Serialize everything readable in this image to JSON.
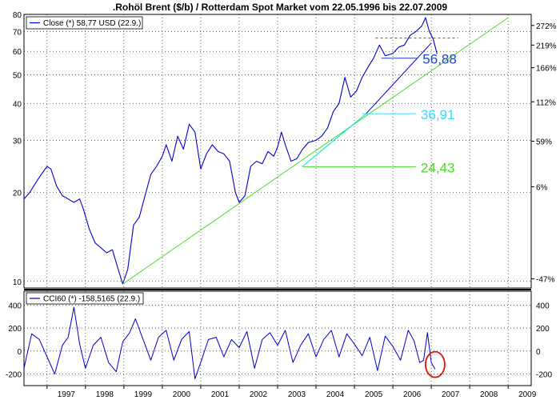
{
  "chart_data": [
    {
      "type": "line",
      "title": ".Rohöl Brent ($/b) / Rotterdam Spot Market vom 22.05.1996 bis 22.07.2009",
      "scale": "log",
      "ylim": [
        9.5,
        80
      ],
      "xlim": [
        1996.4,
        2009.6
      ],
      "legend": {
        "label": "Close (*) 58,77 USD (22.9.)",
        "placement": "top-left",
        "color": "#0000cc"
      },
      "left_ticks": [
        10,
        20,
        30,
        40,
        50,
        60,
        70,
        80
      ],
      "right_ticks": [
        {
          "label": "272%",
          "value": 73.4
        },
        {
          "label": "219%",
          "value": 63.0
        },
        {
          "label": "166%",
          "value": 52.8
        },
        {
          "label": "112%",
          "value": 40.5
        },
        {
          "label": "59%",
          "value": 29.8
        },
        {
          "label": "6%",
          "value": 20.9
        },
        {
          "label": "-47%",
          "value": 10.2
        }
      ],
      "x_tick_labels": [
        "1997",
        "1998",
        "1999",
        "2000",
        "2001",
        "2002",
        "2003",
        "2004",
        "2005",
        "2006",
        "2007",
        "2008",
        "2009"
      ],
      "series": [
        {
          "color": "#0000cc",
          "x": [
            1996.4,
            1996.55,
            1996.7,
            1996.85,
            1997.0,
            1997.1,
            1997.25,
            1997.4,
            1997.55,
            1997.7,
            1997.85,
            1997.95,
            1998.1,
            1998.25,
            1998.4,
            1998.55,
            1998.7,
            1998.85,
            1998.97,
            1999.1,
            1999.25,
            1999.4,
            1999.55,
            1999.7,
            1999.85,
            2000.0,
            2000.1,
            2000.25,
            2000.4,
            2000.55,
            2000.7,
            2000.85,
            2001.0,
            2001.15,
            2001.3,
            2001.45,
            2001.6,
            2001.75,
            2001.9,
            2002.0,
            2002.15,
            2002.3,
            2002.45,
            2002.6,
            2002.75,
            2002.9,
            2003.0,
            2003.1,
            2003.2,
            2003.35,
            2003.5,
            2003.65,
            2003.8,
            2004.0,
            2004.15,
            2004.3,
            2004.45,
            2004.6,
            2004.75,
            2004.9,
            2005.05,
            2005.2,
            2005.35,
            2005.5,
            2005.65,
            2005.8,
            2006.0,
            2006.15,
            2006.3,
            2006.45,
            2006.6,
            2006.75,
            2006.85,
            2006.95,
            2007.05,
            2007.15
          ],
          "y": [
            19.0,
            20.0,
            21.5,
            23.0,
            24.5,
            24.0,
            21.0,
            19.5,
            19.0,
            18.5,
            19.0,
            17.5,
            15.0,
            13.5,
            13.0,
            12.5,
            12.8,
            11.0,
            9.8,
            11.0,
            15.5,
            16.5,
            19.5,
            23.0,
            24.5,
            26.5,
            29.0,
            25.5,
            31.0,
            28.0,
            34.0,
            32.0,
            24.0,
            27.0,
            29.0,
            27.5,
            27.0,
            25.5,
            20.0,
            18.5,
            19.5,
            24.5,
            25.5,
            25.0,
            27.5,
            26.5,
            28.5,
            32.0,
            29.0,
            25.5,
            26.0,
            28.0,
            29.5,
            30.0,
            31.0,
            33.0,
            37.5,
            40.0,
            49.0,
            42.0,
            44.0,
            49.0,
            53.0,
            57.0,
            63.0,
            58.0,
            59.0,
            62.0,
            63.0,
            68.0,
            70.0,
            73.0,
            78.0,
            70.0,
            66.0,
            58.8
          ]
        },
        {
          "color": "#44dd22",
          "x": [
            1998.97,
            2009.0
          ],
          "y": [
            9.8,
            78.0
          ]
        },
        {
          "color": "#00dddd",
          "x": [
            2003.65,
            2005.3
          ],
          "y": [
            24.5,
            36.9
          ]
        },
        {
          "color": "#0000cc",
          "x": [
            2005.3,
            2007.0
          ],
          "y": [
            36.9,
            64.0
          ]
        }
      ],
      "levels": [
        {
          "value": 56.88,
          "label": "56,88",
          "color": "#2244cc",
          "x_start": 2005.7,
          "x_end": 2006.65
        },
        {
          "value": 36.91,
          "label": "36,91",
          "color": "#33ddff",
          "x_start": 2005.2,
          "x_end": 2006.6
        },
        {
          "value": 24.43,
          "label": "24,43",
          "color": "#44dd22",
          "x_start": 2003.65,
          "x_end": 2006.6
        },
        {
          "value": 66.5,
          "label": "",
          "color": "#cc2222",
          "x_start": 2005.55,
          "x_end": 2007.7,
          "dashed": true
        }
      ]
    },
    {
      "type": "line",
      "ylim": [
        -300,
        520
      ],
      "xlim": [
        1996.4,
        2009.6
      ],
      "legend": {
        "label": "CCI60 (*) -158,5165 (22.9.)",
        "placement": "top-left",
        "color": "#0000cc"
      },
      "y_ticks": [
        400,
        200,
        0,
        -200
      ],
      "series": [
        {
          "color": "#0000cc",
          "x": [
            1996.4,
            1996.6,
            1996.8,
            1997.0,
            1997.2,
            1997.4,
            1997.55,
            1997.7,
            1997.85,
            1998.0,
            1998.2,
            1998.4,
            1998.6,
            1998.8,
            1998.97,
            1999.15,
            1999.3,
            1999.5,
            1999.7,
            1999.9,
            2000.1,
            2000.3,
            2000.5,
            2000.7,
            2000.85,
            2001.0,
            2001.2,
            2001.4,
            2001.6,
            2001.8,
            2002.0,
            2002.2,
            2002.4,
            2002.6,
            2002.8,
            2003.0,
            2003.2,
            2003.4,
            2003.6,
            2003.8,
            2004.0,
            2004.2,
            2004.4,
            2004.6,
            2004.8,
            2005.0,
            2005.2,
            2005.4,
            2005.6,
            2005.8,
            2006.0,
            2006.2,
            2006.4,
            2006.55,
            2006.7,
            2006.8,
            2006.9,
            2007.0,
            2007.1
          ],
          "y": [
            -150,
            150,
            100,
            -50,
            -200,
            50,
            120,
            380,
            60,
            -150,
            50,
            120,
            -100,
            -180,
            80,
            160,
            280,
            100,
            -80,
            120,
            180,
            -80,
            100,
            170,
            -240,
            -100,
            100,
            120,
            -50,
            100,
            30,
            170,
            -150,
            100,
            160,
            50,
            180,
            -100,
            50,
            150,
            -50,
            100,
            180,
            -50,
            150,
            60,
            -40,
            120,
            -170,
            130,
            40,
            -80,
            180,
            90,
            -100,
            -80,
            160,
            -100,
            -158.5
          ]
        }
      ],
      "annotation": "red-ellipse-latest-value"
    }
  ]
}
